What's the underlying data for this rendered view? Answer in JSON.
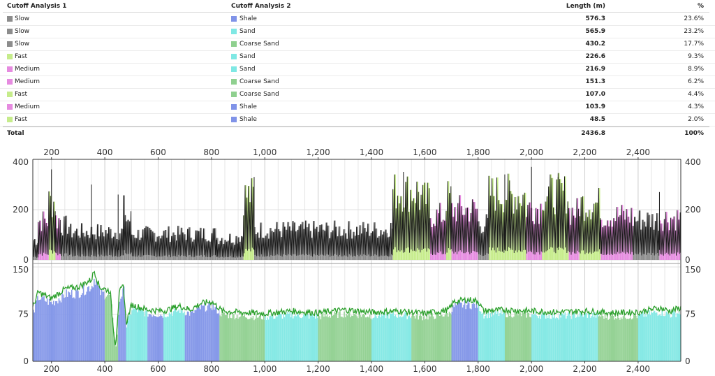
{
  "table": {
    "headers": {
      "col1": "Cutoff Analysis 1",
      "col2": "Cutoff Analysis 2",
      "col3": "Length (m)",
      "col4": "%"
    },
    "rows": [
      {
        "a1": "Slow",
        "c1": "#8c8c8c",
        "a2": "Shale",
        "c2": "#8093e8",
        "length": "576.3",
        "pct": "23.6%"
      },
      {
        "a1": "Slow",
        "c1": "#8c8c8c",
        "a2": "Sand",
        "c2": "#7fe8e4",
        "length": "565.9",
        "pct": "23.2%"
      },
      {
        "a1": "Slow",
        "c1": "#8c8c8c",
        "a2": "Coarse Sand",
        "c2": "#8fd08f",
        "length": "430.2",
        "pct": "17.7%"
      },
      {
        "a1": "Fast",
        "c1": "#c6ec8b",
        "a2": "Sand",
        "c2": "#7fe8e4",
        "length": "226.6",
        "pct": "9.3%"
      },
      {
        "a1": "Medium",
        "c1": "#e68be0",
        "a2": "Sand",
        "c2": "#7fe8e4",
        "length": "216.9",
        "pct": "8.9%"
      },
      {
        "a1": "Medium",
        "c1": "#e68be0",
        "a2": "Coarse Sand",
        "c2": "#8fd08f",
        "length": "151.3",
        "pct": "6.2%"
      },
      {
        "a1": "Fast",
        "c1": "#c6ec8b",
        "a2": "Coarse Sand",
        "c2": "#8fd08f",
        "length": "107.0",
        "pct": "4.4%"
      },
      {
        "a1": "Medium",
        "c1": "#e68be0",
        "a2": "Shale",
        "c2": "#8093e8",
        "length": "103.9",
        "pct": "4.3%"
      },
      {
        "a1": "Fast",
        "c1": "#c6ec8b",
        "a2": "Shale",
        "c2": "#8093e8",
        "length": "48.5",
        "pct": "2.0%"
      }
    ],
    "total": {
      "label": "Total",
      "length": "2436.8",
      "pct": "100%"
    }
  },
  "chart_data": [
    {
      "type": "area",
      "xlim": [
        130,
        2560
      ],
      "ylim": [
        0,
        400
      ],
      "x_ticks": [
        "200",
        "400",
        "600",
        "800",
        "1,000",
        "1,200",
        "1,400",
        "1,600",
        "1,800",
        "2,000",
        "2,200",
        "2,400"
      ],
      "y_ticks": [
        "0",
        "200",
        "400"
      ],
      "grid": true,
      "series": [
        {
          "name": "Slow",
          "color": "#8c8c8c"
        },
        {
          "name": "Medium",
          "color": "#e68be0"
        },
        {
          "name": "Fast",
          "color": "#c6ec8b"
        }
      ],
      "segments": [
        [
          130,
          150,
          "Slow",
          100
        ],
        [
          150,
          190,
          "Medium",
          195
        ],
        [
          190,
          215,
          "Fast",
          290
        ],
        [
          215,
          235,
          "Medium",
          200
        ],
        [
          235,
          270,
          "Slow",
          170
        ],
        [
          270,
          470,
          "Slow",
          140
        ],
        [
          470,
          480,
          "Slow",
          250
        ],
        [
          480,
          500,
          "Slow",
          200
        ],
        [
          500,
          820,
          "Slow",
          130
        ],
        [
          820,
          900,
          "Slow",
          110
        ],
        [
          900,
          920,
          "Slow",
          120
        ],
        [
          920,
          960,
          "Fast",
          320
        ],
        [
          960,
          1460,
          "Slow",
          150
        ],
        [
          1460,
          1480,
          "Slow",
          160
        ],
        [
          1480,
          1580,
          "Fast",
          340
        ],
        [
          1580,
          1620,
          "Fast",
          300
        ],
        [
          1620,
          1680,
          "Medium",
          220
        ],
        [
          1680,
          1700,
          "Fast",
          310
        ],
        [
          1700,
          1800,
          "Medium",
          250
        ],
        [
          1800,
          1840,
          "Slow",
          180
        ],
        [
          1840,
          1920,
          "Fast",
          330
        ],
        [
          1920,
          1980,
          "Fast",
          320
        ],
        [
          1980,
          2040,
          "Medium",
          260
        ],
        [
          2040,
          2140,
          "Fast",
          330
        ],
        [
          2140,
          2180,
          "Medium",
          240
        ],
        [
          2180,
          2260,
          "Fast",
          280
        ],
        [
          2260,
          2380,
          "Medium",
          220
        ],
        [
          2380,
          2480,
          "Slow",
          200
        ],
        [
          2480,
          2560,
          "Medium",
          210
        ]
      ],
      "curve_peaks": [
        [
          200,
          360
        ],
        [
          350,
          300
        ],
        [
          450,
          260
        ],
        [
          960,
          330
        ],
        [
          1520,
          350
        ],
        [
          1900,
          340
        ],
        [
          2000,
          370
        ],
        [
          2100,
          330
        ],
        [
          2480,
          270
        ]
      ]
    },
    {
      "type": "area",
      "xlim": [
        130,
        2560
      ],
      "ylim": [
        0,
        150
      ],
      "x_ticks": [
        "200",
        "400",
        "600",
        "800",
        "1,000",
        "1,200",
        "1,400",
        "1,600",
        "1,800",
        "2,000",
        "2,200",
        "2,400"
      ],
      "y_ticks": [
        "0",
        "75",
        "150"
      ],
      "grid": true,
      "series": [
        {
          "name": "Shale",
          "color": "#8093e8"
        },
        {
          "name": "Sand",
          "color": "#7fe8e4"
        },
        {
          "name": "Coarse Sand",
          "color": "#8fd08f"
        }
      ],
      "line_color": "#2ca02c",
      "line_points": [
        [
          130,
          85
        ],
        [
          150,
          110
        ],
        [
          200,
          100
        ],
        [
          250,
          115
        ],
        [
          300,
          118
        ],
        [
          350,
          130
        ],
        [
          360,
          145
        ],
        [
          380,
          118
        ],
        [
          420,
          112
        ],
        [
          430,
          60
        ],
        [
          440,
          25
        ],
        [
          455,
          110
        ],
        [
          470,
          120
        ],
        [
          480,
          60
        ],
        [
          500,
          90
        ],
        [
          560,
          82
        ],
        [
          620,
          80
        ],
        [
          680,
          88
        ],
        [
          720,
          82
        ],
        [
          760,
          92
        ],
        [
          800,
          95
        ],
        [
          820,
          88
        ],
        [
          840,
          80
        ],
        [
          900,
          78
        ],
        [
          1000,
          76
        ],
        [
          1100,
          80
        ],
        [
          1200,
          77
        ],
        [
          1300,
          82
        ],
        [
          1400,
          78
        ],
        [
          1500,
          80
        ],
        [
          1600,
          76
        ],
        [
          1690,
          82
        ],
        [
          1710,
          95
        ],
        [
          1760,
          98
        ],
        [
          1800,
          96
        ],
        [
          1820,
          80
        ],
        [
          1900,
          82
        ],
        [
          2000,
          80
        ],
        [
          2100,
          78
        ],
        [
          2200,
          80
        ],
        [
          2300,
          77
        ],
        [
          2400,
          78
        ],
        [
          2480,
          85
        ],
        [
          2520,
          80
        ],
        [
          2560,
          85
        ]
      ],
      "segments": [
        [
          130,
          400,
          "Shale"
        ],
        [
          400,
          450,
          "Coarse Sand"
        ],
        [
          450,
          480,
          "Shale"
        ],
        [
          480,
          560,
          "Sand"
        ],
        [
          560,
          620,
          "Shale"
        ],
        [
          620,
          700,
          "Sand"
        ],
        [
          700,
          830,
          "Shale"
        ],
        [
          830,
          1000,
          "Coarse Sand"
        ],
        [
          1000,
          1200,
          "Sand"
        ],
        [
          1200,
          1400,
          "Coarse Sand"
        ],
        [
          1400,
          1550,
          "Sand"
        ],
        [
          1550,
          1700,
          "Coarse Sand"
        ],
        [
          1700,
          1800,
          "Shale"
        ],
        [
          1800,
          1900,
          "Sand"
        ],
        [
          1900,
          2000,
          "Coarse Sand"
        ],
        [
          2000,
          2250,
          "Sand"
        ],
        [
          2250,
          2400,
          "Coarse Sand"
        ],
        [
          2400,
          2560,
          "Sand"
        ]
      ]
    }
  ]
}
